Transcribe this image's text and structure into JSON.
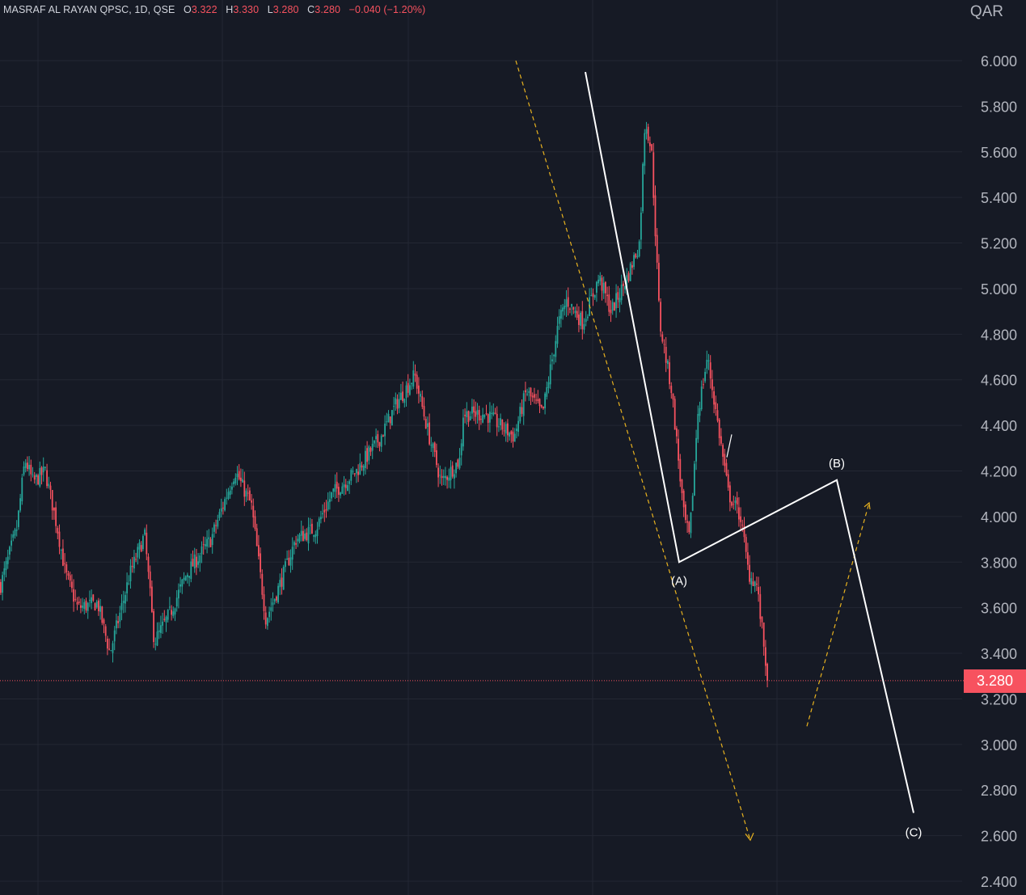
{
  "legend": {
    "symbol": "MASRAF AL RAYAN QPSC, 1D, QSE",
    "o_label": "O",
    "o_value": "3.322",
    "h_label": "H",
    "h_value": "3.330",
    "l_label": "L",
    "l_value": "3.280",
    "c_label": "C",
    "c_value": "3.280",
    "change": "−0.040 (−1.20%)"
  },
  "currency": "QAR",
  "last_price": "3.280",
  "colors": {
    "background": "#161a25",
    "grid": "#232733",
    "up": "#26a69a",
    "down": "#f7525f",
    "axis_text": "#b2b5be",
    "wave_line": "#ffffff",
    "projection": "#e8b21f",
    "price_line": "#f7525f"
  },
  "chart_data": {
    "type": "candlestick",
    "title": "MASRAF AL RAYAN QPSC, 1D, QSE",
    "ylabel": "QAR",
    "ylim": [
      2.35,
      6.2
    ],
    "y_ticks": [
      "6.000",
      "5.800",
      "5.600",
      "5.400",
      "5.200",
      "5.000",
      "4.800",
      "4.600",
      "4.400",
      "4.200",
      "4.000",
      "3.800",
      "3.600",
      "3.400",
      "3.200",
      "3.000",
      "2.800",
      "2.600",
      "2.400"
    ],
    "grid": true,
    "last_close": 3.28,
    "price_path": [
      {
        "t": 0,
        "p": 3.7
      },
      {
        "t": 20,
        "p": 3.95
      },
      {
        "t": 30,
        "p": 4.25
      },
      {
        "t": 40,
        "p": 4.15
      },
      {
        "t": 55,
        "p": 4.2
      },
      {
        "t": 70,
        "p": 3.95
      },
      {
        "t": 80,
        "p": 3.75
      },
      {
        "t": 95,
        "p": 3.6
      },
      {
        "t": 120,
        "p": 3.62
      },
      {
        "t": 135,
        "p": 3.4
      },
      {
        "t": 160,
        "p": 3.75
      },
      {
        "t": 178,
        "p": 3.92
      },
      {
        "t": 190,
        "p": 3.45
      },
      {
        "t": 210,
        "p": 3.58
      },
      {
        "t": 230,
        "p": 3.75
      },
      {
        "t": 260,
        "p": 3.9
      },
      {
        "t": 290,
        "p": 4.2
      },
      {
        "t": 310,
        "p": 4.05
      },
      {
        "t": 328,
        "p": 3.55
      },
      {
        "t": 345,
        "p": 3.7
      },
      {
        "t": 365,
        "p": 3.9
      },
      {
        "t": 390,
        "p": 3.95
      },
      {
        "t": 410,
        "p": 4.1
      },
      {
        "t": 440,
        "p": 4.2
      },
      {
        "t": 470,
        "p": 4.35
      },
      {
        "t": 490,
        "p": 4.5
      },
      {
        "t": 512,
        "p": 4.62
      },
      {
        "t": 530,
        "p": 4.35
      },
      {
        "t": 545,
        "p": 4.15
      },
      {
        "t": 568,
        "p": 4.25
      },
      {
        "t": 572,
        "p": 4.45
      },
      {
        "t": 600,
        "p": 4.45
      },
      {
        "t": 635,
        "p": 4.35
      },
      {
        "t": 650,
        "p": 4.55
      },
      {
        "t": 670,
        "p": 4.45
      },
      {
        "t": 690,
        "p": 4.85
      },
      {
        "t": 700,
        "p": 4.95
      },
      {
        "t": 720,
        "p": 4.85
      },
      {
        "t": 740,
        "p": 5.05
      },
      {
        "t": 755,
        "p": 4.9
      },
      {
        "t": 775,
        "p": 5.05
      },
      {
        "t": 790,
        "p": 5.2
      },
      {
        "t": 797,
        "p": 5.75
      },
      {
        "t": 805,
        "p": 5.6
      },
      {
        "t": 815,
        "p": 4.85
      },
      {
        "t": 830,
        "p": 4.55
      },
      {
        "t": 845,
        "p": 4.0
      },
      {
        "t": 852,
        "p": 3.9
      },
      {
        "t": 862,
        "p": 4.45
      },
      {
        "t": 874,
        "p": 4.7
      },
      {
        "t": 885,
        "p": 4.45
      },
      {
        "t": 900,
        "p": 4.1
      },
      {
        "t": 915,
        "p": 4.0
      },
      {
        "t": 925,
        "p": 3.75
      },
      {
        "t": 935,
        "p": 3.7
      },
      {
        "t": 949,
        "p": 3.28
      }
    ],
    "wave_labels": [
      "(A)",
      "(B)",
      "(C)"
    ],
    "wave_path": [
      {
        "t": 724,
        "p": 5.95
      },
      {
        "t": 840,
        "p": 3.8
      },
      {
        "t": 1035,
        "p": 4.16
      },
      {
        "t": 1130,
        "p": 2.7
      }
    ],
    "projection_down": [
      {
        "t": 638,
        "p": 6.0
      },
      {
        "t": 928,
        "p": 2.58
      }
    ],
    "projection_up": [
      {
        "t": 998,
        "p": 3.08
      },
      {
        "t": 1075,
        "p": 4.06
      }
    ]
  }
}
